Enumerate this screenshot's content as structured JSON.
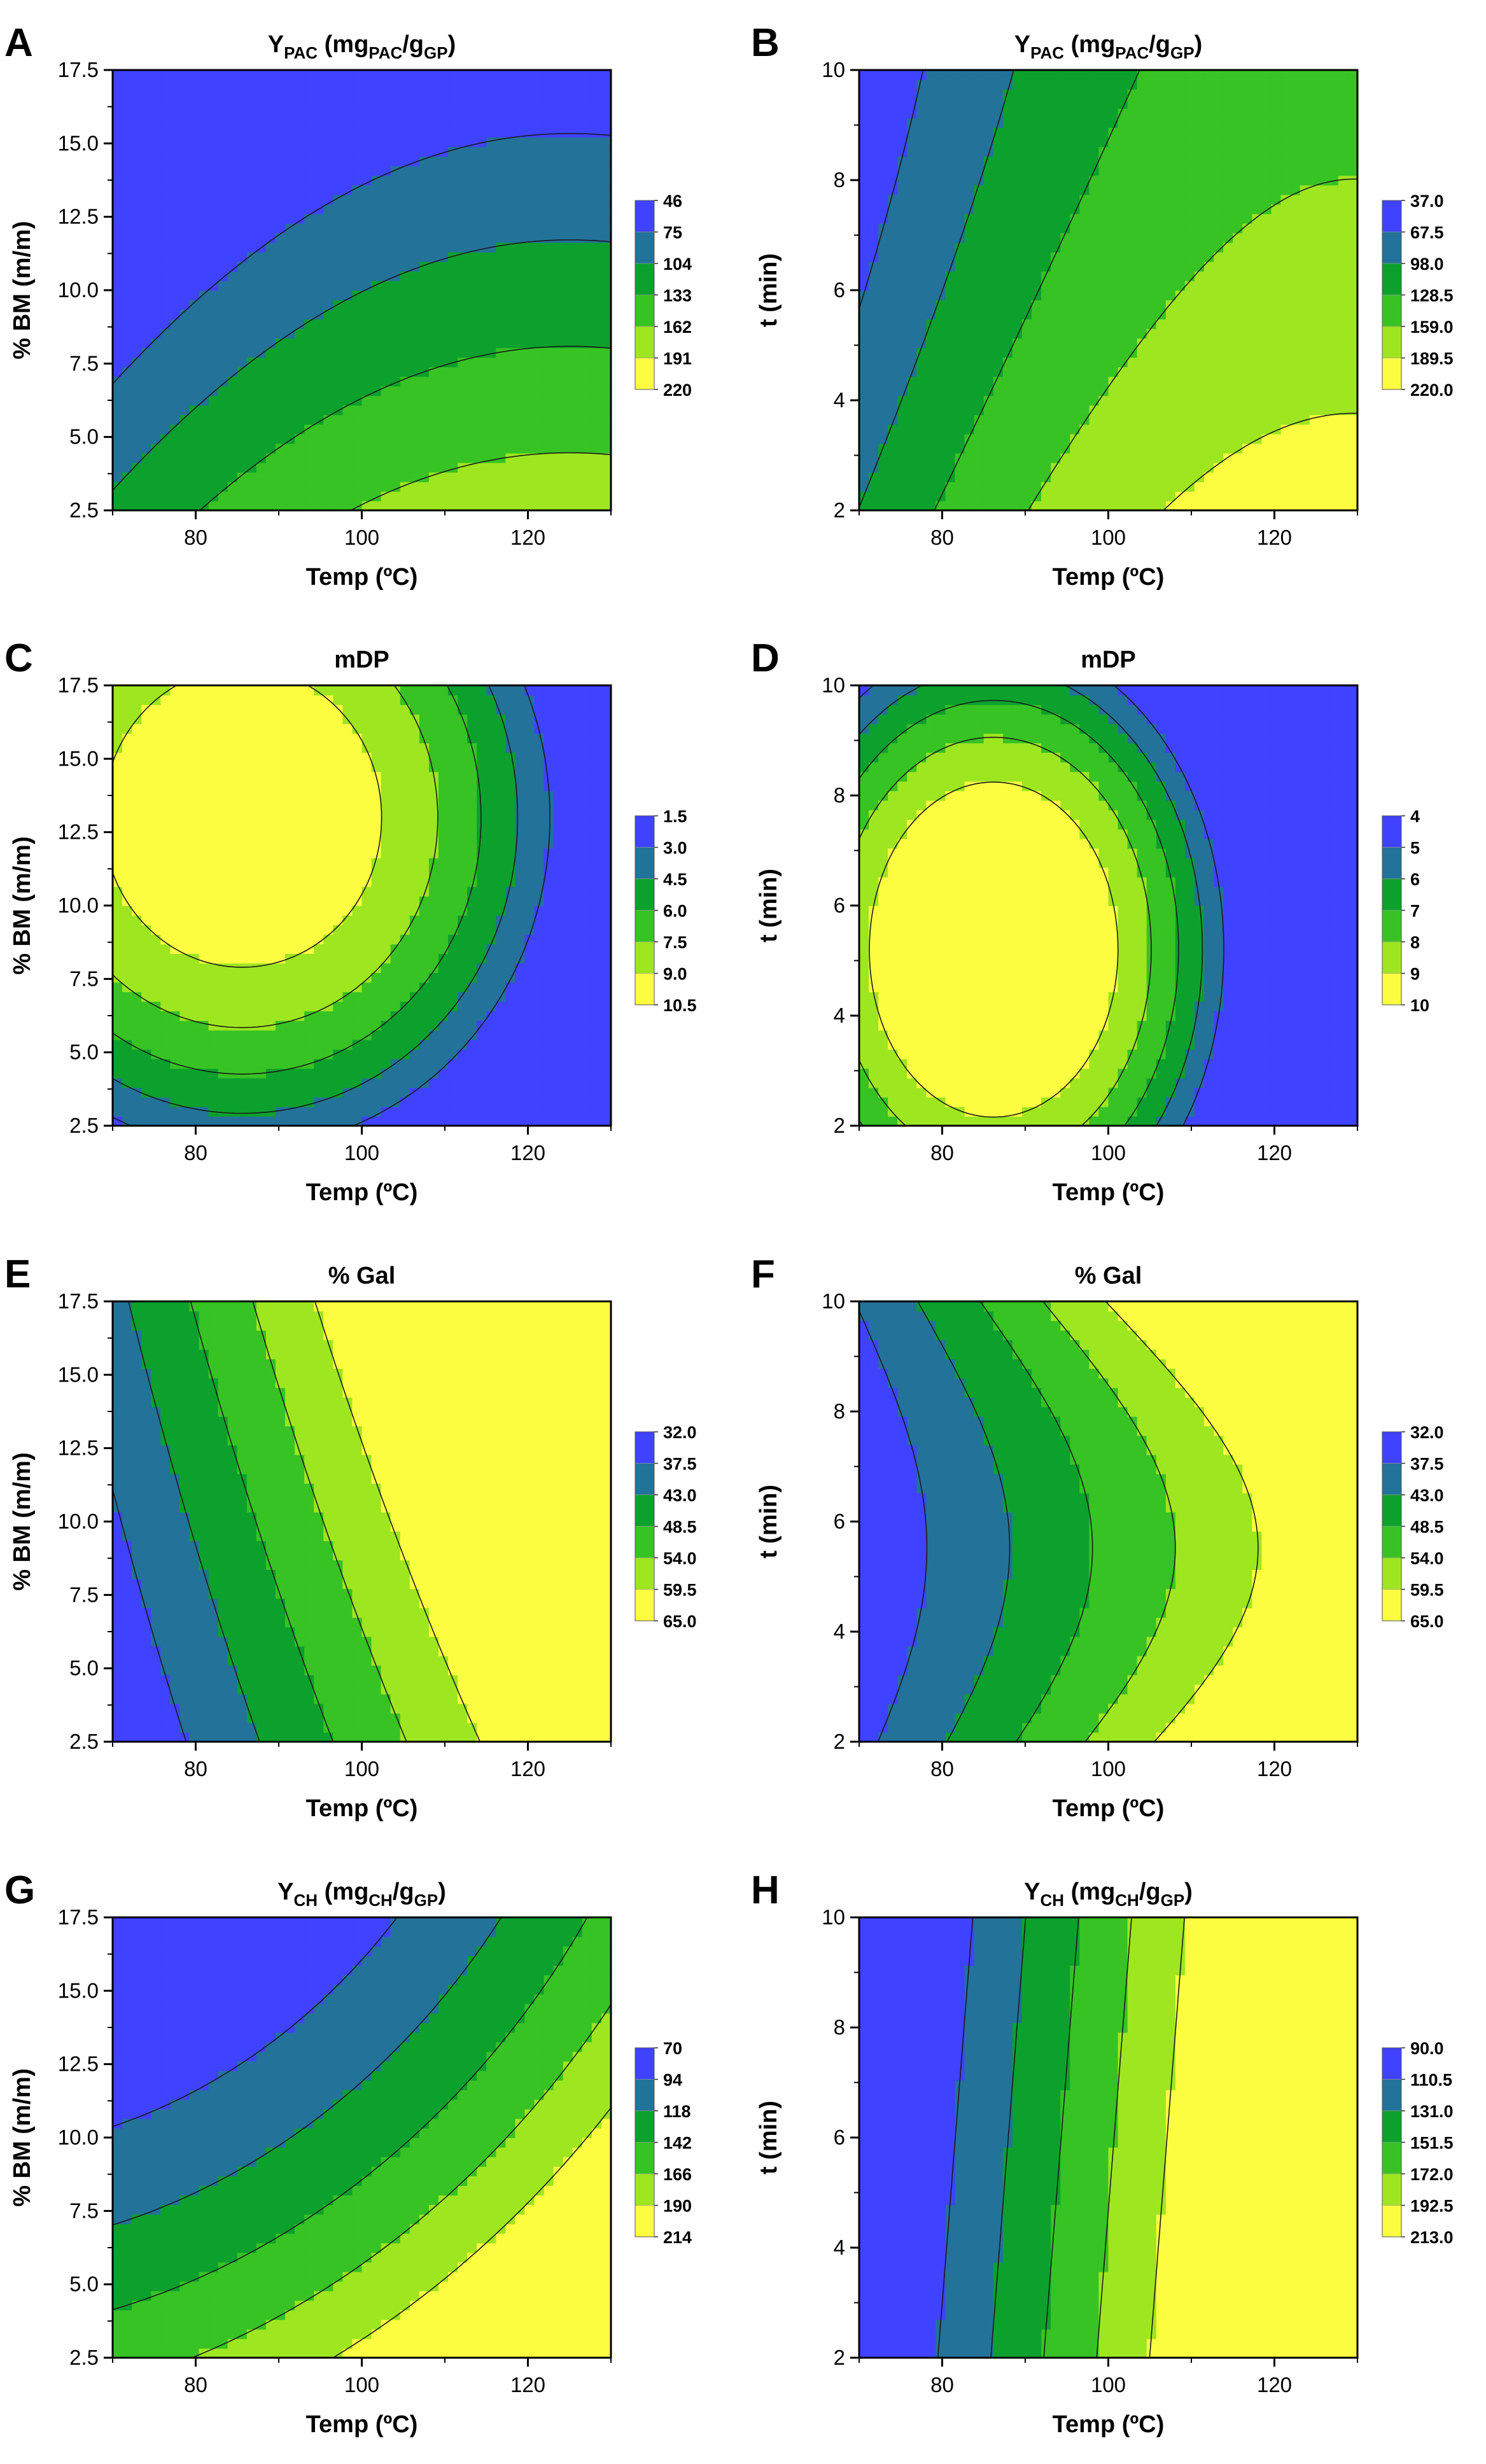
{
  "palette": [
    "#3f42ff",
    "#23729a",
    "#0ca12d",
    "#37c323",
    "#9ee61f",
    "#fcfc41"
  ],
  "chart_data": [
    {
      "type": "contour",
      "letter": "A",
      "resp": "pac",
      "xvar": "temp",
      "yvar": "bm",
      "title": "Y",
      "title_sub": "PAC",
      "title_rest": " (mg",
      "title_sub2": "PAC",
      "title_mid": "/g",
      "title_sub3": "GP",
      "title_end": ")",
      "xlabel": "Temp (ºC)",
      "ylabel": "% BM (m/m)",
      "xlim": [
        70,
        130
      ],
      "ylim": [
        2.5,
        17.5
      ],
      "xticks": [
        "80",
        "100",
        "120"
      ],
      "yticks": [
        "2.5",
        "5.0",
        "7.5",
        "10.0",
        "12.5",
        "15.0",
        "17.5"
      ],
      "legend_levels": [
        "46",
        "75",
        "104",
        "133",
        "162",
        "191",
        "220"
      ]
    },
    {
      "type": "contour",
      "letter": "B",
      "resp": "pac",
      "xvar": "temp",
      "yvar": "t",
      "title": "Y",
      "title_sub": "PAC",
      "title_rest": " (mg",
      "title_sub2": "PAC",
      "title_mid": "/g",
      "title_sub3": "GP",
      "title_end": ")",
      "xlabel": "Temp (ºC)",
      "ylabel": "t (min)",
      "xlim": [
        70,
        130
      ],
      "ylim": [
        2,
        10
      ],
      "xticks": [
        "80",
        "100",
        "120"
      ],
      "yticks": [
        "2",
        "4",
        "6",
        "8",
        "10"
      ],
      "legend_levels": [
        "37.0",
        "67.5",
        "98.0",
        "128.5",
        "159.0",
        "189.5",
        "220.0"
      ]
    },
    {
      "type": "contour",
      "letter": "C",
      "resp": "mdp",
      "xvar": "temp",
      "yvar": "bm",
      "title": "mDP",
      "xlabel": "Temp (ºC)",
      "ylabel": "% BM (m/m)",
      "xlim": [
        70,
        130
      ],
      "ylim": [
        2.5,
        17.5
      ],
      "xticks": [
        "80",
        "100",
        "120"
      ],
      "yticks": [
        "2.5",
        "5.0",
        "7.5",
        "10.0",
        "12.5",
        "15.0",
        "17.5"
      ],
      "legend_levels": [
        "1.5",
        "3.0",
        "4.5",
        "6.0",
        "7.5",
        "9.0",
        "10.5"
      ]
    },
    {
      "type": "contour",
      "letter": "D",
      "resp": "mdp",
      "xvar": "temp",
      "yvar": "t",
      "title": "mDP",
      "xlabel": "Temp (ºC)",
      "ylabel": "t (min)",
      "xlim": [
        70,
        130
      ],
      "ylim": [
        2,
        10
      ],
      "xticks": [
        "80",
        "100",
        "120"
      ],
      "yticks": [
        "2",
        "4",
        "6",
        "8",
        "10"
      ],
      "legend_levels": [
        "4",
        "5",
        "6",
        "7",
        "8",
        "9",
        "10"
      ]
    },
    {
      "type": "contour",
      "letter": "E",
      "resp": "gal",
      "xvar": "temp",
      "yvar": "bm",
      "title": "% Gal",
      "xlabel": "Temp (ºC)",
      "ylabel": "% BM (m/m)",
      "xlim": [
        70,
        130
      ],
      "ylim": [
        2.5,
        17.5
      ],
      "xticks": [
        "80",
        "100",
        "120"
      ],
      "yticks": [
        "2.5",
        "5.0",
        "7.5",
        "10.0",
        "12.5",
        "15.0",
        "17.5"
      ],
      "legend_levels": [
        "32.0",
        "37.5",
        "43.0",
        "48.5",
        "54.0",
        "59.5",
        "65.0"
      ]
    },
    {
      "type": "contour",
      "letter": "F",
      "resp": "gal",
      "xvar": "temp",
      "yvar": "t",
      "title": "% Gal",
      "xlabel": "Temp (ºC)",
      "ylabel": "t (min)",
      "xlim": [
        70,
        130
      ],
      "ylim": [
        2,
        10
      ],
      "xticks": [
        "80",
        "100",
        "120"
      ],
      "yticks": [
        "2",
        "4",
        "6",
        "8",
        "10"
      ],
      "legend_levels": [
        "32.0",
        "37.5",
        "43.0",
        "48.5",
        "54.0",
        "59.5",
        "65.0"
      ]
    },
    {
      "type": "contour",
      "letter": "G",
      "resp": "ch",
      "xvar": "temp",
      "yvar": "bm",
      "title": "Y",
      "title_sub": "CH",
      "title_rest": " (mg",
      "title_sub2": "CH",
      "title_mid": "/g",
      "title_sub3": "GP",
      "title_end": ")",
      "xlabel": "Temp (ºC)",
      "ylabel": "% BM (m/m)",
      "xlim": [
        70,
        130
      ],
      "ylim": [
        2.5,
        17.5
      ],
      "xticks": [
        "80",
        "100",
        "120"
      ],
      "yticks": [
        "2.5",
        "5.0",
        "7.5",
        "10.0",
        "12.5",
        "15.0",
        "17.5"
      ],
      "legend_levels": [
        "70",
        "94",
        "118",
        "142",
        "166",
        "190",
        "214"
      ]
    },
    {
      "type": "contour",
      "letter": "H",
      "resp": "ch",
      "xvar": "temp",
      "yvar": "t",
      "title": "Y",
      "title_sub": "CH",
      "title_rest": " (mg",
      "title_sub2": "CH",
      "title_mid": "/g",
      "title_sub3": "GP",
      "title_end": ")",
      "xlabel": "Temp (ºC)",
      "ylabel": "t (min)",
      "xlim": [
        70,
        130
      ],
      "ylim": [
        2,
        10
      ],
      "xticks": [
        "80",
        "100",
        "120"
      ],
      "yticks": [
        "2",
        "4",
        "6",
        "8",
        "10"
      ],
      "legend_levels": [
        "90.0",
        "110.5",
        "131.0",
        "151.5",
        "172.0",
        "192.5",
        "213.0"
      ]
    }
  ]
}
